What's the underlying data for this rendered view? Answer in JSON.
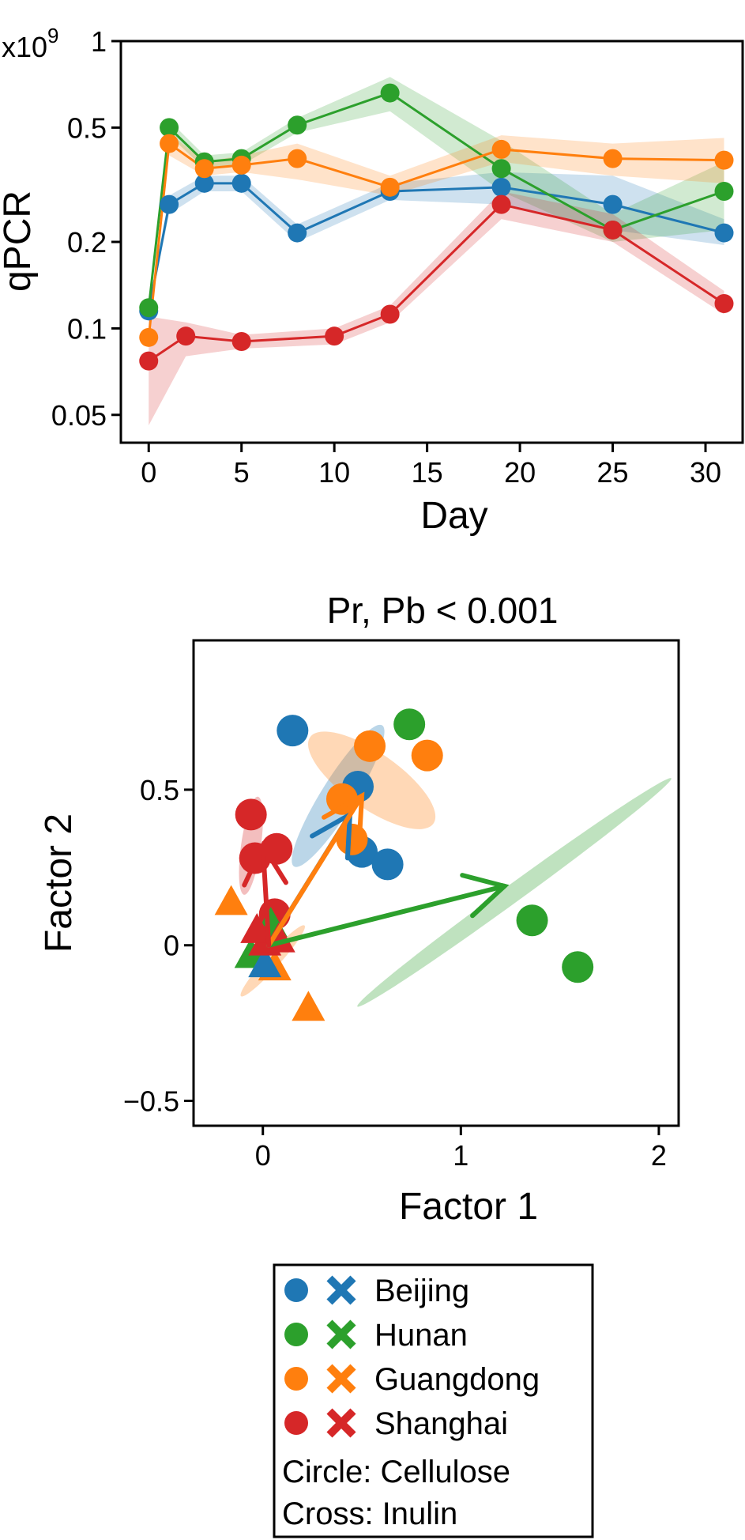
{
  "chart_data": [
    {
      "type": "line",
      "xlabel": "Day",
      "ylabel": "qPCR",
      "y_multiplier_label": "x10",
      "y_multiplier_exponent": "9",
      "yscale": "log",
      "ylim": [
        0.04,
        1.0
      ],
      "xlim": [
        -1.5,
        32
      ],
      "x_ticks": [
        0,
        5,
        10,
        15,
        20,
        25,
        30
      ],
      "x_tick_labels": [
        "0",
        "5",
        "10",
        "15",
        "20",
        "25",
        "30"
      ],
      "y_ticks": [
        0.05,
        0.1,
        0.2,
        0.5,
        1
      ],
      "y_tick_labels": [
        "0.05",
        "0.1",
        "0.2",
        "0.5",
        "1"
      ],
      "series": [
        {
          "name": "Beijing",
          "color": "#1f77b4",
          "points": [
            [
              0,
              0.115
            ],
            [
              1.1,
              0.27
            ],
            [
              3,
              0.32
            ],
            [
              5,
              0.32
            ],
            [
              8,
              0.215
            ],
            [
              13,
              0.3
            ],
            [
              19,
              0.31
            ],
            [
              25,
              0.27
            ],
            [
              31,
              0.215
            ]
          ],
          "band_lo": [
            0.112,
            0.25,
            0.3,
            0.3,
            0.2,
            0.28,
            0.27,
            0.22,
            0.195
          ],
          "band_hi": [
            0.118,
            0.29,
            0.34,
            0.34,
            0.23,
            0.32,
            0.35,
            0.34,
            0.24
          ]
        },
        {
          "name": "Hunan",
          "color": "#2ca02c",
          "points": [
            [
              0,
              0.118
            ],
            [
              1.1,
              0.5
            ],
            [
              3,
              0.38
            ],
            [
              5,
              0.39
            ],
            [
              8,
              0.51
            ],
            [
              13,
              0.66
            ],
            [
              19,
              0.36
            ],
            [
              25,
              0.22
            ],
            [
              31,
              0.3
            ]
          ],
          "band_lo": [
            0.115,
            0.47,
            0.36,
            0.37,
            0.48,
            0.57,
            0.3,
            0.2,
            0.22
          ],
          "band_hi": [
            0.121,
            0.53,
            0.4,
            0.41,
            0.54,
            0.75,
            0.45,
            0.25,
            0.38
          ]
        },
        {
          "name": "Guangdong",
          "color": "#ff7f0e",
          "points": [
            [
              0,
              0.093
            ],
            [
              1.1,
              0.44
            ],
            [
              3,
              0.36
            ],
            [
              5,
              0.37
            ],
            [
              8,
              0.39
            ],
            [
              13,
              0.31
            ],
            [
              19,
              0.42
            ],
            [
              25,
              0.39
            ],
            [
              31,
              0.385
            ]
          ],
          "band_lo": [
            0.09,
            0.4,
            0.34,
            0.35,
            0.33,
            0.29,
            0.38,
            0.34,
            0.32
          ],
          "band_hi": [
            0.096,
            0.48,
            0.38,
            0.4,
            0.44,
            0.34,
            0.47,
            0.44,
            0.46
          ]
        },
        {
          "name": "Shanghai",
          "color": "#d62728",
          "points": [
            [
              0,
              0.077
            ],
            [
              2,
              0.094
            ],
            [
              5,
              0.09
            ],
            [
              10,
              0.094
            ],
            [
              13,
              0.112
            ],
            [
              19,
              0.27
            ],
            [
              25,
              0.22
            ],
            [
              31,
              0.122
            ]
          ],
          "band_lo": [
            0.046,
            0.08,
            0.085,
            0.088,
            0.105,
            0.24,
            0.2,
            0.112
          ],
          "band_hi": [
            0.11,
            0.105,
            0.095,
            0.1,
            0.12,
            0.3,
            0.25,
            0.135
          ]
        }
      ]
    },
    {
      "type": "scatter",
      "title": "Pr, Pb < 0.001",
      "xlabel": "Factor 1",
      "ylabel": "Factor 2",
      "xlim": [
        -0.35,
        2.1
      ],
      "ylim": [
        -0.58,
        0.98
      ],
      "x_ticks": [
        0,
        1,
        2
      ],
      "x_tick_labels": [
        "0",
        "1",
        "2"
      ],
      "y_ticks": [
        -0.5,
        0,
        0.5
      ],
      "y_tick_labels": [
        "−0.5",
        "0",
        "0.5"
      ],
      "ellipses": [
        {
          "group": "Hunan",
          "color": "#2ca02c",
          "cx": 1.27,
          "cy": 0.17,
          "rx": 0.98,
          "ry": 0.045,
          "angle_deg": -36
        },
        {
          "group": "Beijing",
          "color": "#1f77b4",
          "cx": 0.38,
          "cy": 0.48,
          "rx": 0.42,
          "ry": 0.085,
          "angle_deg": -58
        },
        {
          "group": "Guangdong",
          "color": "#ff7f0e",
          "cx": 0.55,
          "cy": 0.53,
          "rx": 0.38,
          "ry": 0.14,
          "angle_deg": 35
        },
        {
          "group": "Shanghai",
          "color": "#d62728",
          "cx": -0.06,
          "cy": 0.32,
          "rx": 0.25,
          "ry": 0.05,
          "angle_deg": -82
        },
        {
          "group": "Guangdong",
          "color": "#ff7f0e",
          "cx": 0.05,
          "cy": -0.05,
          "rx": 0.24,
          "ry": 0.035,
          "angle_deg": -48
        }
      ],
      "points": [
        {
          "group": "Beijing",
          "marker": "circle",
          "x": 0.15,
          "y": 0.69
        },
        {
          "group": "Beijing",
          "marker": "circle",
          "x": 0.48,
          "y": 0.51
        },
        {
          "group": "Beijing",
          "marker": "circle",
          "x": 0.5,
          "y": 0.3
        },
        {
          "group": "Beijing",
          "marker": "circle",
          "x": 0.63,
          "y": 0.26
        },
        {
          "group": "Hunan",
          "marker": "circle",
          "x": 0.74,
          "y": 0.71
        },
        {
          "group": "Hunan",
          "marker": "circle",
          "x": 1.36,
          "y": 0.08
        },
        {
          "group": "Hunan",
          "marker": "circle",
          "x": 1.59,
          "y": -0.07
        },
        {
          "group": "Guangdong",
          "marker": "circle",
          "x": 0.54,
          "y": 0.64
        },
        {
          "group": "Guangdong",
          "marker": "circle",
          "x": 0.83,
          "y": 0.61
        },
        {
          "group": "Guangdong",
          "marker": "circle",
          "x": 0.4,
          "y": 0.47
        },
        {
          "group": "Guangdong",
          "marker": "circle",
          "x": 0.45,
          "y": 0.34
        },
        {
          "group": "Shanghai",
          "marker": "circle",
          "x": -0.06,
          "y": 0.42
        },
        {
          "group": "Shanghai",
          "marker": "circle",
          "x": -0.04,
          "y": 0.28
        },
        {
          "group": "Shanghai",
          "marker": "circle",
          "x": 0.07,
          "y": 0.31
        },
        {
          "group": "Shanghai",
          "marker": "circle",
          "x": 0.06,
          "y": 0.1
        },
        {
          "group": "Guangdong",
          "marker": "triangle",
          "x": -0.16,
          "y": 0.14
        },
        {
          "group": "Guangdong",
          "marker": "triangle",
          "x": 0.23,
          "y": -0.2
        },
        {
          "group": "Guangdong",
          "marker": "triangle",
          "x": 0.06,
          "y": -0.07
        },
        {
          "group": "Hunan",
          "marker": "triangle",
          "x": -0.06,
          "y": -0.03
        },
        {
          "group": "Hunan",
          "marker": "triangle",
          "x": 0.04,
          "y": 0.07
        },
        {
          "group": "Beijing",
          "marker": "triangle",
          "x": 0.01,
          "y": -0.06
        },
        {
          "group": "Shanghai",
          "marker": "triangle",
          "x": 0.01,
          "y": 0.01
        },
        {
          "group": "Shanghai",
          "marker": "triangle",
          "x": -0.03,
          "y": 0.05
        },
        {
          "group": "Shanghai",
          "marker": "triangle",
          "x": 0.08,
          "y": 0.02
        }
      ],
      "arrows": [
        {
          "group": "Hunan",
          "color": "#2ca02c",
          "x0": 0.03,
          "y0": 0.0,
          "x1": 1.22,
          "y1": 0.19
        },
        {
          "group": "Beijing",
          "color": "#1f77b4",
          "x0": 0.03,
          "y0": 0.0,
          "x1": 0.44,
          "y1": 0.42
        },
        {
          "group": "Guangdong",
          "color": "#ff7f0e",
          "x0": 0.03,
          "y0": 0.0,
          "x1": 0.5,
          "y1": 0.48
        },
        {
          "group": "Shanghai",
          "color": "#d62728",
          "x0": 0.03,
          "y0": 0.0,
          "x1": 0.0,
          "y1": 0.32
        }
      ]
    }
  ],
  "legend": {
    "entries": [
      {
        "label": "Beijing",
        "color": "#1f77b4"
      },
      {
        "label": "Hunan",
        "color": "#2ca02c"
      },
      {
        "label": "Guangdong",
        "color": "#ff7f0e"
      },
      {
        "label": "Shanghai",
        "color": "#d62728"
      }
    ],
    "note_circle": "Circle: Cellulose",
    "note_cross": "Cross: Inulin"
  }
}
